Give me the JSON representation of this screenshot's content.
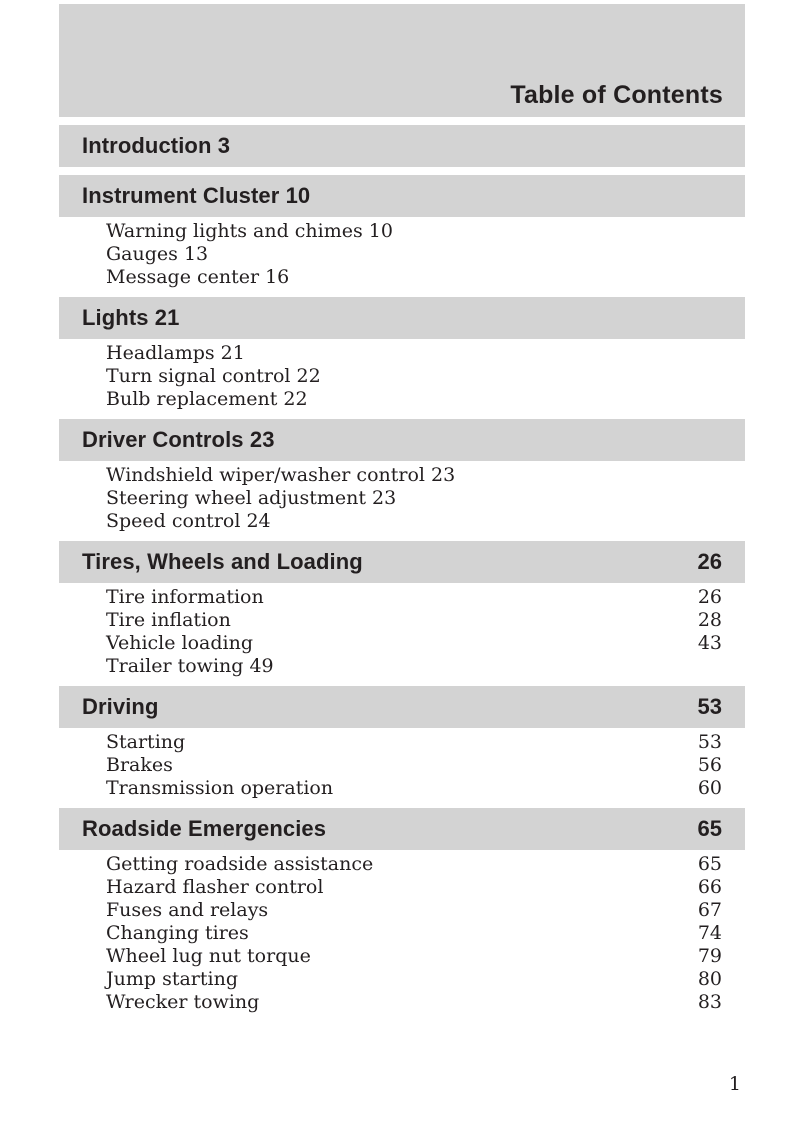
{
  "page": {
    "title": "Table of Contents",
    "page_number": "1",
    "colors": {
      "bar_gray": "#d3d3d3",
      "ink": "#231f20"
    }
  },
  "sections": [
    {
      "title": "Introduction 3",
      "page": null,
      "entries": []
    },
    {
      "title": "Instrument Cluster 10",
      "page": null,
      "entries": [
        {
          "label": "Warning lights and chimes 10"
        },
        {
          "label": "Gauges 13"
        },
        {
          "label": "Message center 16"
        }
      ]
    },
    {
      "title": "Lights 21",
      "page": null,
      "entries": [
        {
          "label": "Headlamps 21"
        },
        {
          "label": "Turn signal control 22"
        },
        {
          "label": "Bulb replacement 22"
        }
      ]
    },
    {
      "title": "Driver Controls 23",
      "page": null,
      "entries": [
        {
          "label": "Windshield wiper/washer control 23"
        },
        {
          "label": "Steering wheel adjustment 23"
        },
        {
          "label": "Speed control 24"
        }
      ]
    },
    {
      "title": "Tires, Wheels and Loading",
      "page": "26",
      "entries": [
        {
          "label": "Tire information",
          "page": "26"
        },
        {
          "label": "Tire inflation",
          "page": "28"
        },
        {
          "label": "Vehicle loading",
          "page": "43"
        },
        {
          "label": "Trailer towing 49"
        }
      ]
    },
    {
      "title": "Driving",
      "page": "53",
      "entries": [
        {
          "label": "Starting",
          "page": "53"
        },
        {
          "label": "Brakes",
          "page": "56"
        },
        {
          "label": "Transmission operation",
          "page": "60"
        }
      ]
    },
    {
      "title": "Roadside Emergencies",
      "page": "65",
      "entries": [
        {
          "label": "Getting roadside assistance",
          "page": "65"
        },
        {
          "label": "Hazard flasher control",
          "page": "66"
        },
        {
          "label": "Fuses and relays",
          "page": "67"
        },
        {
          "label": "Changing tires",
          "page": "74"
        },
        {
          "label": "Wheel lug nut torque",
          "page": "79"
        },
        {
          "label": "Jump starting",
          "page": "80"
        },
        {
          "label": "Wrecker towing",
          "page": "83"
        }
      ]
    }
  ]
}
